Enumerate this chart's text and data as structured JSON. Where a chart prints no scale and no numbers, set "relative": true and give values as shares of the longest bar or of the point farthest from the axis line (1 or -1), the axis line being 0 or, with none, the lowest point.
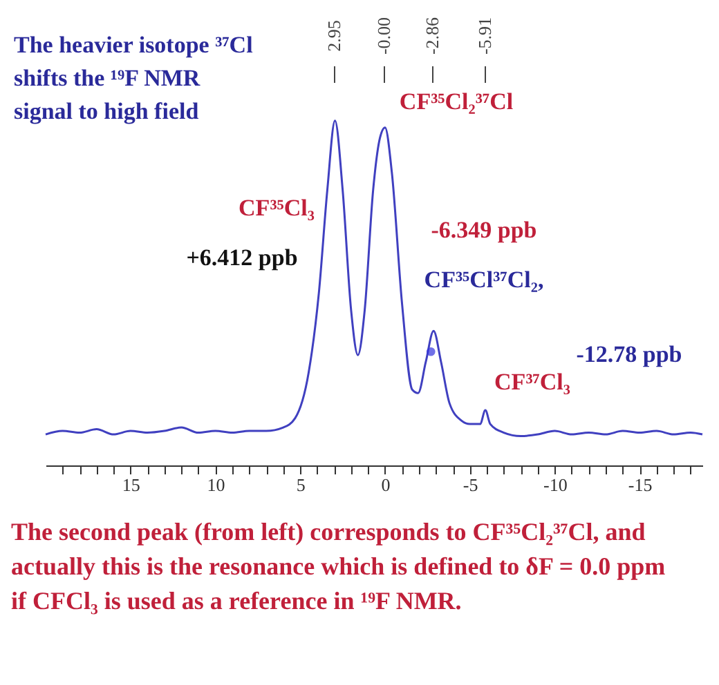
{
  "chart_data": {
    "type": "line",
    "relative": true,
    "annotations": [
      "The heavier isotope ³⁷Cl\nshifts the ¹⁹F NMR\nsignal to high field",
      "The second peak (from left) corresponds to CF³⁵Cl₂³⁷Cl, and\nactually this is the resonance which is defined to δF = 0.0 ppm\nif CFCl₃ is used as a reference in ¹⁹F NMR.",
      "2.95",
      "-0.00",
      "-2.86",
      "-5.91",
      "CF³⁵Cl₃",
      "+6.412 ppb",
      "CF³⁵Cl₂³⁷Cl",
      "-6.349 ppb",
      "CF³⁵Cl³⁷Cl₂,",
      "CF³⁷Cl₃",
      "-12.78 ppb"
    ],
    "xlim": [
      20,
      -18.7
    ],
    "xticks": [
      {
        "value": 19,
        "label": null
      },
      {
        "value": 18,
        "label": null
      },
      {
        "value": 17,
        "label": null
      },
      {
        "value": 16,
        "label": null
      },
      15,
      {
        "value": 14,
        "label": null
      },
      {
        "value": 13,
        "label": null
      },
      {
        "value": 12,
        "label": null
      },
      {
        "value": 11,
        "label": null
      },
      10,
      {
        "value": 9,
        "label": null
      },
      {
        "value": 8,
        "label": null
      },
      {
        "value": 7,
        "label": null
      },
      {
        "value": 6,
        "label": null
      },
      5,
      {
        "value": 4,
        "label": null
      },
      {
        "value": 3,
        "label": null
      },
      {
        "value": 2,
        "label": null
      },
      {
        "value": 1,
        "label": null
      },
      0,
      {
        "value": -1,
        "label": null
      },
      {
        "value": -2,
        "label": null
      },
      {
        "value": -3,
        "label": null
      },
      {
        "value": -4,
        "label": null
      },
      -5,
      {
        "value": -6,
        "label": null
      },
      {
        "value": -7,
        "label": null
      },
      {
        "value": -8,
        "label": null
      },
      {
        "value": -9,
        "label": null
      },
      -10,
      {
        "value": -11,
        "label": null
      },
      {
        "value": -12,
        "label": null
      },
      {
        "value": -13,
        "label": null
      },
      {
        "value": -14,
        "label": null
      },
      -15,
      {
        "value": -16,
        "label": null
      },
      {
        "value": -17,
        "label": null
      },
      {
        "value": -18,
        "label": null
      }
    ],
    "grid": false,
    "marker": "none",
    "line_style": "solid",
    "series": [
      {
        "color": "#4040c0",
        "x": [
          20,
          19,
          18,
          17,
          16,
          15,
          14,
          13,
          12,
          11,
          10,
          9,
          8,
          7,
          6,
          5.3,
          4.5,
          3.9,
          3.4,
          2.95,
          2.5,
          2.0,
          1.6,
          1.2,
          0.7,
          0.3,
          0,
          -0.4,
          -1.0,
          -1.6,
          -1.95,
          -2.4,
          -2.86,
          -3.3,
          -3.8,
          -4.5,
          -5.0,
          -5.6,
          -5.91,
          -6.2,
          -7,
          -8,
          -9,
          -10,
          -11,
          -12,
          -13,
          -14,
          -15,
          -16,
          -17,
          -18,
          -18.7
        ],
        "values": [
          0.09,
          0.1,
          0.095,
          0.105,
          0.09,
          0.1,
          0.095,
          0.1,
          0.11,
          0.095,
          0.1,
          0.095,
          0.1,
          0.1,
          0.11,
          0.137,
          0.27,
          0.5,
          0.8,
          1.0,
          0.8,
          0.45,
          0.32,
          0.45,
          0.8,
          0.95,
          0.98,
          0.85,
          0.47,
          0.22,
          0.21,
          0.3,
          0.39,
          0.3,
          0.18,
          0.13,
          0.12,
          0.12,
          0.16,
          0.12,
          0.095,
          0.085,
          0.09,
          0.1,
          0.09,
          0.095,
          0.09,
          0.1,
          0.095,
          0.1,
          0.09,
          0.095,
          0.09
        ]
      },
      {
        "type": "scatter",
        "color": "#3333dd",
        "marker": "circle",
        "x": [
          -2.7
        ],
        "values": [
          0.33
        ]
      }
    ]
  }
}
